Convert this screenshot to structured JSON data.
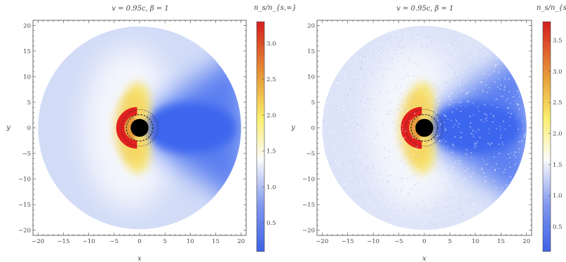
{
  "chart_data": [
    {
      "type": "heatmap",
      "panel": "left",
      "title": "v = 0.95c, β = 1",
      "xlabel": "x",
      "ylabel": "y",
      "xlim": [
        -21,
        21
      ],
      "ylim": [
        -21,
        21
      ],
      "xticks_labeled": [
        -20,
        -15,
        -10,
        -5,
        0,
        5,
        10,
        15,
        20
      ],
      "yticks_labeled": [
        -20,
        -15,
        -10,
        -5,
        0,
        5,
        10,
        15,
        20
      ],
      "disk_radius": 20,
      "horizon_radius": 1.3,
      "colorbar": {
        "label": "n_s/n_{s,∞}",
        "min": 0.1,
        "max": 3.3,
        "ticks": [
          0.5,
          1.0,
          1.5,
          2.0,
          2.5,
          3.0
        ],
        "tick_labels": [
          "0.5",
          "1.0",
          "1.5",
          "2.0",
          "2.5",
          "3.0"
        ]
      }
    },
    {
      "type": "heatmap",
      "panel": "right",
      "title": "v = 0.95c, β = 1",
      "xlabel": "x",
      "ylabel": "y",
      "xlim": [
        -21,
        21
      ],
      "ylim": [
        -21,
        21
      ],
      "xticks_labeled": [
        -20,
        -15,
        -10,
        -5,
        0,
        5,
        10,
        15,
        20
      ],
      "yticks_labeled": [
        -20,
        -15,
        -10,
        -5,
        0,
        5,
        10,
        15,
        20
      ],
      "disk_radius": 20,
      "horizon_radius": 1.3,
      "noisy": true,
      "colorbar": {
        "label": "n_s/n_{s,∞}",
        "min": 0.1,
        "max": 3.8,
        "ticks": [
          0.5,
          1.0,
          1.5,
          2.0,
          2.5,
          3.0,
          3.5
        ],
        "tick_labels": [
          "0.5",
          "1.0",
          "1.5",
          "2.0",
          "2.5",
          "3.0",
          "3.5"
        ]
      }
    }
  ]
}
